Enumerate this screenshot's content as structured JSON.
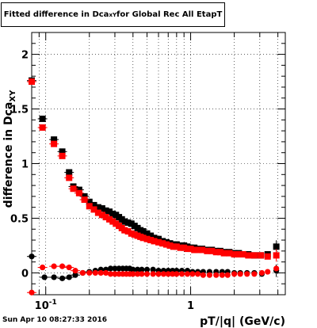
{
  "title": {
    "prefix": "Fitted difference in Dca",
    "subscript": "xY",
    "suffix": " for Global Rec All EtapT"
  },
  "datestamp": "Sun Apr 10 08:27:33 2016",
  "chart_data": {
    "type": "scatter",
    "title": "Fitted difference in Dca_xY for Global Rec All EtapT",
    "xlabel": "pT/|q| (GeV/c)",
    "ylabel": "difference in Dca_XY",
    "x_scale": "log",
    "xlim": [
      0.08,
      4.5
    ],
    "ylim": [
      -0.2,
      2.2
    ],
    "x_ticks": [
      {
        "v": 0.1,
        "label": "10",
        "exp": "-1"
      },
      {
        "v": 1,
        "label": "1",
        "exp": ""
      }
    ],
    "y_ticks": [
      {
        "v": 0,
        "label": "0"
      },
      {
        "v": 0.5,
        "label": "0.5"
      },
      {
        "v": 1,
        "label": "1"
      },
      {
        "v": 1.5,
        "label": "1.5"
      },
      {
        "v": 2,
        "label": "2"
      }
    ],
    "grid": true,
    "series": [
      {
        "color": "#000000",
        "x": [
          0.08,
          0.095,
          0.114,
          0.13,
          0.145,
          0.155,
          0.17,
          0.185,
          0.2,
          0.215,
          0.23,
          0.245,
          0.26,
          0.275,
          0.29,
          0.305,
          0.32,
          0.335,
          0.35,
          0.37,
          0.39,
          0.41,
          0.43,
          0.45,
          0.47,
          0.5,
          0.53,
          0.56,
          0.6,
          0.64,
          0.68,
          0.72,
          0.76,
          0.8,
          0.85,
          0.9,
          0.95,
          1.0,
          1.06,
          1.12,
          1.2,
          1.3,
          1.4,
          1.5,
          1.6,
          1.7,
          1.85,
          2.0,
          2.15,
          2.3,
          2.5,
          2.75,
          3.05,
          3.4,
          3.9
        ],
        "y": [
          1.76,
          1.41,
          1.22,
          1.11,
          0.92,
          0.79,
          0.76,
          0.7,
          0.65,
          0.62,
          0.6,
          0.59,
          0.57,
          0.56,
          0.54,
          0.53,
          0.51,
          0.49,
          0.47,
          0.46,
          0.45,
          0.43,
          0.41,
          0.39,
          0.38,
          0.36,
          0.34,
          0.32,
          0.31,
          0.29,
          0.28,
          0.27,
          0.26,
          0.26,
          0.25,
          0.25,
          0.24,
          0.23,
          0.23,
          0.22,
          0.22,
          0.21,
          0.21,
          0.2,
          0.2,
          0.19,
          0.19,
          0.18,
          0.18,
          0.17,
          0.17,
          0.16,
          0.16,
          0.17,
          0.24
        ]
      },
      {
        "color": "#ff0000",
        "x": [
          0.08,
          0.095,
          0.114,
          0.13,
          0.145,
          0.155,
          0.17,
          0.185,
          0.2,
          0.215,
          0.23,
          0.245,
          0.26,
          0.275,
          0.29,
          0.305,
          0.32,
          0.335,
          0.35,
          0.37,
          0.39,
          0.41,
          0.43,
          0.45,
          0.47,
          0.5,
          0.53,
          0.56,
          0.6,
          0.64,
          0.68,
          0.72,
          0.76,
          0.8,
          0.85,
          0.9,
          0.95,
          1.0,
          1.06,
          1.12,
          1.2,
          1.3,
          1.4,
          1.5,
          1.6,
          1.7,
          1.85,
          2.0,
          2.15,
          2.3,
          2.5,
          2.75,
          3.05,
          3.4,
          3.9
        ],
        "y": [
          1.75,
          1.33,
          1.18,
          1.07,
          0.87,
          0.77,
          0.73,
          0.67,
          0.61,
          0.58,
          0.55,
          0.53,
          0.51,
          0.49,
          0.47,
          0.45,
          0.43,
          0.41,
          0.39,
          0.38,
          0.36,
          0.35,
          0.34,
          0.33,
          0.32,
          0.31,
          0.3,
          0.29,
          0.28,
          0.27,
          0.26,
          0.25,
          0.24,
          0.24,
          0.23,
          0.23,
          0.22,
          0.22,
          0.21,
          0.21,
          0.21,
          0.2,
          0.2,
          0.19,
          0.19,
          0.18,
          0.18,
          0.17,
          0.17,
          0.17,
          0.16,
          0.16,
          0.16,
          0.15,
          0.16
        ]
      },
      {
        "color": "#000000",
        "x": [
          0.08,
          0.098,
          0.114,
          0.13,
          0.145,
          0.16,
          0.18,
          0.2,
          0.22,
          0.24,
          0.26,
          0.28,
          0.3,
          0.32,
          0.34,
          0.36,
          0.38,
          0.4,
          0.43,
          0.46,
          0.5,
          0.55,
          0.6,
          0.65,
          0.7,
          0.75,
          0.8,
          0.87,
          0.95,
          1.03,
          1.12,
          1.22,
          1.35,
          1.5,
          1.65,
          1.8,
          2.0,
          2.2,
          2.45,
          2.75,
          3.1,
          3.9
        ],
        "y": [
          0.15,
          -0.04,
          -0.04,
          -0.05,
          -0.04,
          -0.02,
          0.0,
          0.01,
          0.02,
          0.03,
          0.03,
          0.04,
          0.04,
          0.04,
          0.04,
          0.04,
          0.04,
          0.03,
          0.03,
          0.03,
          0.03,
          0.03,
          0.02,
          0.02,
          0.02,
          0.02,
          0.02,
          0.02,
          0.02,
          0.01,
          0.01,
          0.01,
          0.01,
          0.01,
          0.01,
          0.01,
          0.0,
          0.0,
          0.0,
          0.0,
          -0.01,
          0.02
        ]
      },
      {
        "color": "#ff0000",
        "x": [
          0.08,
          0.095,
          0.114,
          0.13,
          0.145,
          0.16,
          0.18,
          0.2,
          0.22,
          0.24,
          0.26,
          0.28,
          0.3,
          0.32,
          0.34,
          0.36,
          0.38,
          0.4,
          0.43,
          0.46,
          0.5,
          0.55,
          0.6,
          0.65,
          0.7,
          0.75,
          0.8,
          0.87,
          0.95,
          1.03,
          1.12,
          1.22,
          1.35,
          1.5,
          1.65,
          1.8,
          2.0,
          2.2,
          2.45,
          2.75,
          3.1,
          3.4,
          3.9
        ],
        "y": [
          -0.18,
          0.05,
          0.06,
          0.06,
          0.05,
          0.02,
          0.0,
          0.0,
          0.0,
          0.0,
          0.0,
          -0.01,
          -0.01,
          -0.01,
          -0.01,
          -0.01,
          -0.01,
          -0.01,
          -0.01,
          -0.01,
          -0.01,
          -0.01,
          -0.01,
          -0.01,
          -0.01,
          -0.01,
          -0.01,
          -0.01,
          -0.01,
          -0.01,
          -0.01,
          -0.02,
          -0.02,
          -0.02,
          -0.02,
          -0.02,
          -0.01,
          -0.01,
          -0.01,
          -0.01,
          0.0,
          0.01,
          0.04
        ]
      }
    ]
  }
}
